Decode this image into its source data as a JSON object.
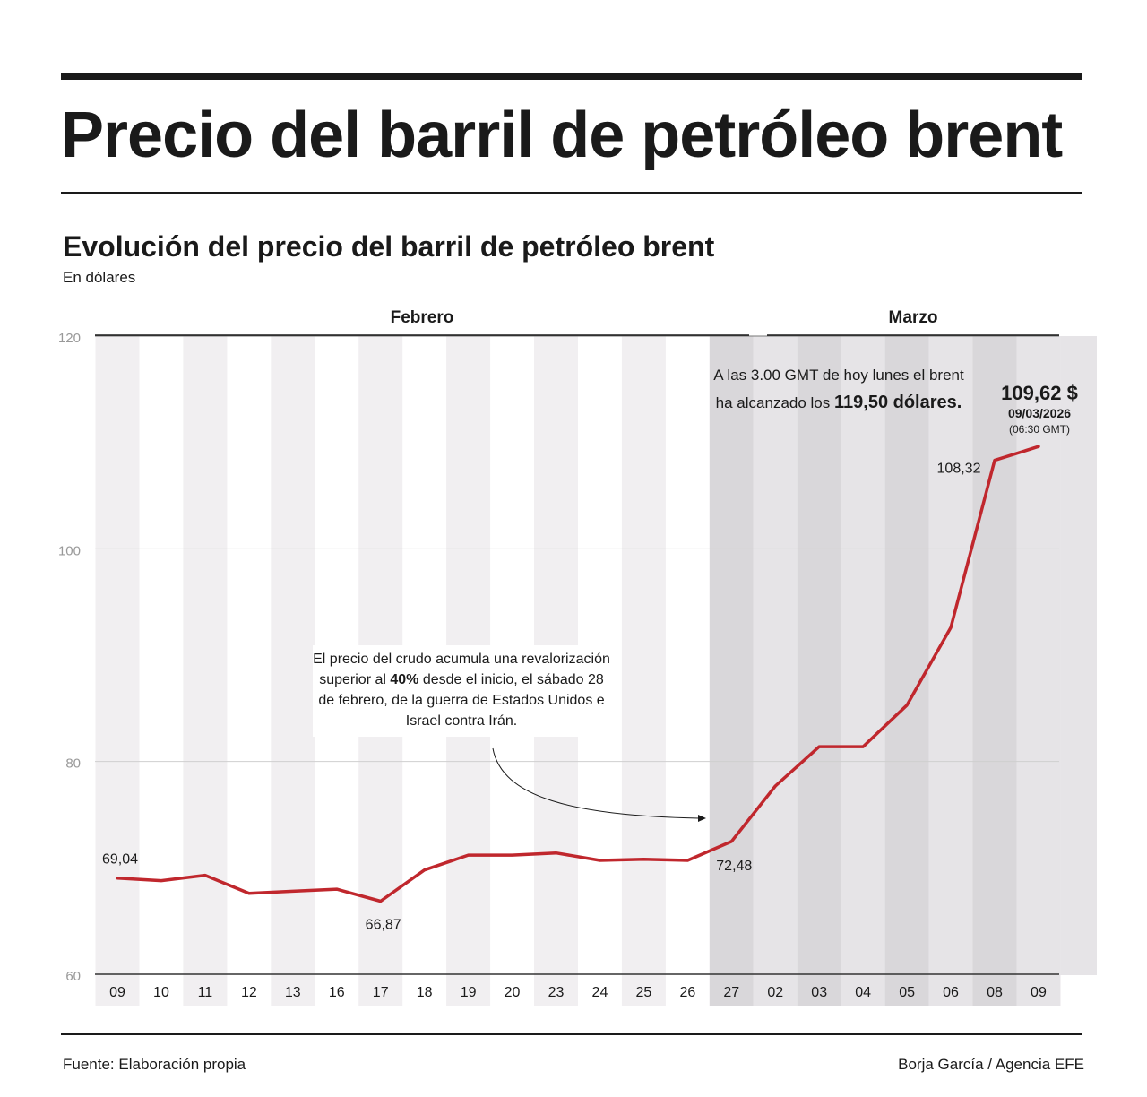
{
  "header": {
    "title": "Precio del barril de petróleo brent"
  },
  "chart_header": {
    "subtitle": "Evolución del precio del barril de petróleo brent",
    "unit": "En dólares"
  },
  "annotations": {
    "war_note": {
      "part1": "El precio del crudo acumula una revalorización superior al ",
      "bold": "40%",
      "part2": " desde el inicio, el sábado 28 de febrero, de la guerra de Estados Unidos e Israel contra Irán."
    },
    "peak_note": {
      "part1": "A las 3.00 GMT de hoy lunes el brent ha alcanzado los ",
      "bold": "119,50 dólares."
    },
    "last_point": {
      "value": "109,62 $",
      "date": "09/03/2026",
      "time": "(06:30 GMT)"
    }
  },
  "footer": {
    "source": "Fuente: Elaboración propia",
    "credit": "Borja García / Agencia EFE"
  },
  "colors": {
    "line": "#c0272d",
    "shade_light": "#f1eff1",
    "shade_dark": "#d9d7da",
    "shade_dark_alt": "#e6e4e7",
    "text": "#1a1a1a",
    "axis_label": "#999999"
  },
  "chart_data": {
    "type": "line",
    "months": [
      {
        "name": "Febrero",
        "start_index": 0,
        "end_index": 14
      },
      {
        "name": "Marzo",
        "start_index": 15,
        "end_index": 21
      }
    ],
    "categories": [
      "09",
      "10",
      "11",
      "12",
      "13",
      "16",
      "17",
      "18",
      "19",
      "20",
      "23",
      "24",
      "25",
      "26",
      "27",
      "02",
      "03",
      "04",
      "05",
      "06",
      "08",
      "09"
    ],
    "series": [
      {
        "values": [
          69.04,
          68.8,
          69.3,
          67.6,
          67.8,
          68.0,
          66.87,
          69.8,
          71.2,
          71.2,
          71.4,
          70.7,
          70.8,
          70.7,
          72.48,
          77.7,
          81.4,
          81.4,
          85.3,
          92.6,
          108.32,
          109.62
        ]
      }
    ],
    "data_labels": [
      {
        "index": 0,
        "text": "69,04"
      },
      {
        "index": 6,
        "text": "66,87"
      },
      {
        "index": 14,
        "text": "72,48"
      },
      {
        "index": 20,
        "text": "108,32"
      }
    ],
    "y_ticks": [
      60,
      80,
      100,
      120
    ],
    "ylim": [
      60,
      120
    ],
    "grid": true
  }
}
